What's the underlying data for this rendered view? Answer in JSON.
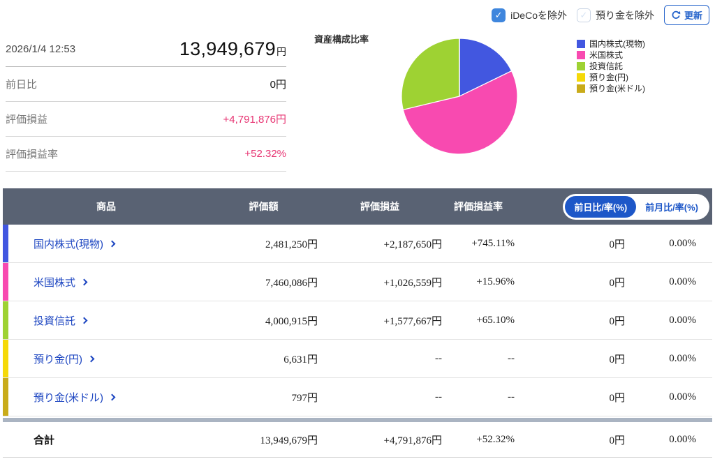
{
  "colors": {
    "accent_blue": "#2664cb",
    "toggle_blue": "#1d57c8",
    "link_blue": "#1c45c1",
    "positive_pink": "#e73573",
    "header_bg": "#596273",
    "separator_gray": "#aab4c2",
    "checkbox_checked_blue": "#3f86dd"
  },
  "toolbar": {
    "ideco_label": "iDeCoを除外",
    "ideco_checked": true,
    "deposit_label": "預り金を除外",
    "deposit_checked": false,
    "refresh_label": "更新",
    "check_glyph": "✓"
  },
  "summary": {
    "timestamp": "2026/1/4 12:53",
    "total_amount": "13,949,679",
    "currency_suffix": "円",
    "rows": [
      {
        "label": "前日比",
        "value": "0円"
      },
      {
        "label": "評価損益",
        "value": "+4,791,876円"
      },
      {
        "label": "評価損益率",
        "value": "+52.32%"
      }
    ]
  },
  "chart_data": {
    "type": "pie",
    "title": "資産構成比率",
    "labels": [
      "国内株式(現物)",
      "米国株式",
      "投資信託",
      "預り金(円)",
      "預り金(米ドル)"
    ],
    "values": [
      2481250,
      7460086,
      4000915,
      6631,
      797
    ],
    "percentages": [
      17.79,
      53.48,
      28.68,
      0.05,
      0.01
    ],
    "colors": [
      "#4257e0",
      "#f84ab0",
      "#9ed233",
      "#f5d908",
      "#c9ab1a"
    ],
    "legend_position": "right",
    "start_angle": "top",
    "direction": "clockwise"
  },
  "table": {
    "headers": {
      "product": "商品",
      "value": "評価額",
      "pl": "評価損益",
      "pl_rate": "評価損益率"
    },
    "period_toggle": {
      "day": "前日比/率(%)",
      "month": "前月比/率(%)",
      "selected": "前日比/率(%)"
    },
    "rows": [
      {
        "label": "国内株式(現物)",
        "value": "2,481,250円",
        "pl": "+2,187,650円",
        "pl_rate": "+745.11%",
        "day_change": "0円",
        "day_rate": "0.00%",
        "color": "#4257e0"
      },
      {
        "label": "米国株式",
        "value": "7,460,086円",
        "pl": "+1,026,559円",
        "pl_rate": "+15.96%",
        "day_change": "0円",
        "day_rate": "0.00%",
        "color": "#f84ab0"
      },
      {
        "label": "投資信託",
        "value": "4,000,915円",
        "pl": "+1,577,667円",
        "pl_rate": "+65.10%",
        "day_change": "0円",
        "day_rate": "0.00%",
        "color": "#9ed233"
      },
      {
        "label": "預り金(円)",
        "value": "6,631円",
        "pl": "--",
        "pl_rate": "--",
        "day_change": "0円",
        "day_rate": "0.00%",
        "color": "#f5d908"
      },
      {
        "label": "預り金(米ドル)",
        "value": "797円",
        "pl": "--",
        "pl_rate": "--",
        "day_change": "0円",
        "day_rate": "0.00%",
        "color": "#c9ab1a"
      }
    ],
    "total": {
      "label": "合計",
      "value": "13,949,679円",
      "pl": "+4,791,876円",
      "pl_rate": "+52.32%",
      "day_change": "0円",
      "day_rate": "0.00%"
    }
  }
}
